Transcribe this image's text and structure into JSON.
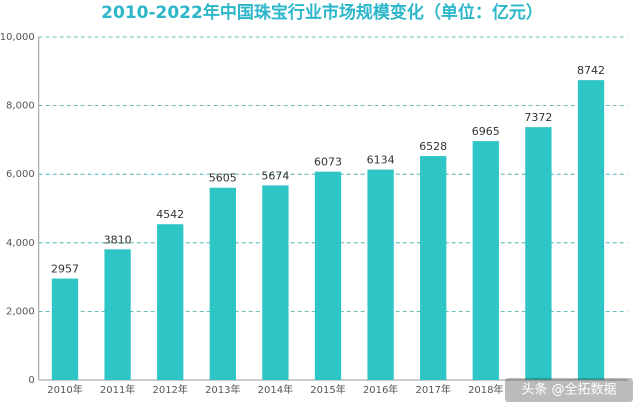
{
  "chart_data": {
    "type": "bar",
    "title": "2010-2022年中国珠宝行业市场规模变化（单位：亿元）",
    "categories": [
      "2010年",
      "2011年",
      "2012年",
      "2013年",
      "2014年",
      "2015年",
      "2016年",
      "2017年",
      "2018年",
      null,
      null
    ],
    "values": [
      2957,
      3810,
      4542,
      5605,
      5674,
      6073,
      6134,
      6528,
      6965,
      7372,
      8742
    ],
    "color": "#2ec5c7",
    "ylim": [
      0,
      10000
    ],
    "yticks": [
      0,
      {
        "value": 2000,
        "label": "2,000"
      },
      {
        "value": 4000,
        "label": "4,000"
      },
      {
        "value": 6000,
        "label": "6,000"
      },
      {
        "value": 8000,
        "label": "8,000"
      },
      {
        "value": 10000,
        "label": "10,000"
      }
    ],
    "grid": true,
    "watermark": "头条 @全拓数据"
  }
}
